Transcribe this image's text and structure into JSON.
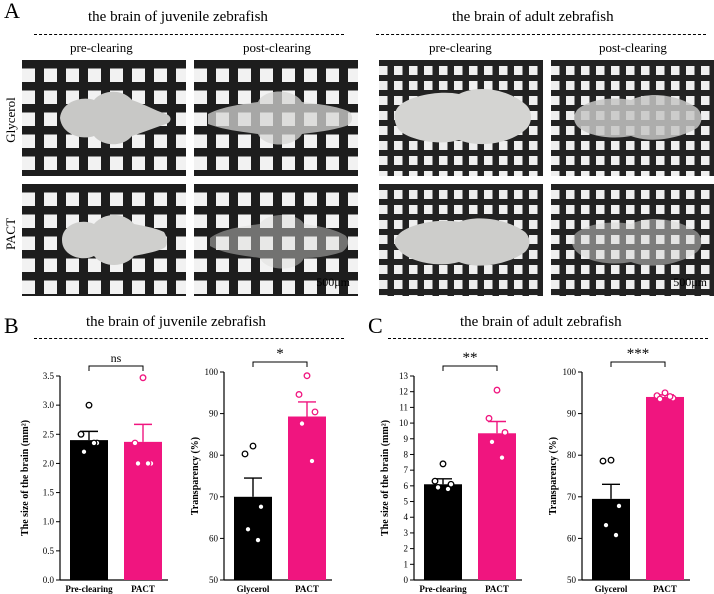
{
  "panel_letters": {
    "a": "A",
    "b": "B",
    "c": "C"
  },
  "panel_a": {
    "title_juvenile": "the brain of juvenile zebrafish",
    "title_adult": "the brain of adult zebrafish",
    "col_pre": "pre-clearing",
    "col_post": "post-clearing",
    "row_glycerol": "Glycerol",
    "row_pact": "PACT",
    "scale_bar": "500μm"
  },
  "panel_b_title": "the brain of juvenile zebrafish",
  "panel_c_title": "the brain of adult zebrafish",
  "chart_data": [
    {
      "id": "b1",
      "type": "bar",
      "categories": [
        "Pre-clearing",
        "PACT"
      ],
      "values": [
        2.4,
        2.37
      ],
      "errors": [
        0.15,
        0.3
      ],
      "colors": [
        "#000000",
        "#f0157f"
      ],
      "points": [
        [
          3.0,
          2.5,
          2.35,
          2.2,
          2.35
        ],
        [
          3.47,
          2.35,
          2.0,
          2.0,
          2.0
        ]
      ],
      "ylabel": "The size of the brain (mm²)",
      "ylim": [
        0,
        3.5
      ],
      "yticks": [
        "0.0",
        "0.5",
        "1.0",
        "1.5",
        "2.0",
        "2.5",
        "3.0",
        "3.5"
      ],
      "ytick_values": [
        0,
        0.5,
        1,
        1.5,
        2,
        2.5,
        3,
        3.5
      ],
      "significance": "ns"
    },
    {
      "id": "b2",
      "type": "bar",
      "categories": [
        "Glycerol",
        "PACT"
      ],
      "values": [
        70,
        89.3
      ],
      "errors": [
        4.5,
        3.5
      ],
      "colors": [
        "#000000",
        "#f0157f"
      ],
      "points": [
        [
          82.2,
          80.3,
          67.6,
          62.2,
          59.6
        ],
        [
          99.1,
          94.6,
          90.4,
          87.6,
          78.6
        ]
      ],
      "ylabel": "Transparency (%)",
      "ylim": [
        50,
        100
      ],
      "yticks": [
        "50",
        "60",
        "70",
        "80",
        "90",
        "100"
      ],
      "ytick_values": [
        50,
        60,
        70,
        80,
        90,
        100
      ],
      "significance": "*"
    },
    {
      "id": "c1",
      "type": "bar",
      "categories": [
        "Pre-clearing",
        "PACT"
      ],
      "values": [
        6.1,
        9.35
      ],
      "errors": [
        0.35,
        0.75
      ],
      "colors": [
        "#000000",
        "#f0157f"
      ],
      "points": [
        [
          7.4,
          6.3,
          6.1,
          5.9,
          5.8
        ],
        [
          12.1,
          10.3,
          9.4,
          8.8,
          7.8
        ]
      ],
      "ylabel": "The size of the brain (mm²)",
      "ylim": [
        0,
        13
      ],
      "yticks": [
        "0",
        "1",
        "2",
        "3",
        "4",
        "5",
        "6",
        "7",
        "8",
        "9",
        "10",
        "11",
        "12",
        "13"
      ],
      "ytick_values": [
        0,
        1,
        2,
        3,
        4,
        5,
        6,
        7,
        8,
        9,
        10,
        11,
        12,
        13
      ],
      "significance": "**"
    },
    {
      "id": "c2",
      "type": "bar",
      "categories": [
        "Glycerol",
        "PACT"
      ],
      "values": [
        69.5,
        94
      ],
      "errors": [
        3.5,
        0.5
      ],
      "colors": [
        "#000000",
        "#f0157f"
      ],
      "points": [
        [
          78.8,
          78.6,
          67.8,
          63.2,
          60.8
        ],
        [
          95.0,
          94.3,
          93.7,
          93.5,
          94.1
        ]
      ],
      "ylabel": "Transparency (%)",
      "ylim": [
        50,
        100
      ],
      "yticks": [
        "50",
        "60",
        "70",
        "80",
        "90",
        "100"
      ],
      "ytick_values": [
        50,
        60,
        70,
        80,
        90,
        100
      ],
      "significance": "***"
    }
  ]
}
